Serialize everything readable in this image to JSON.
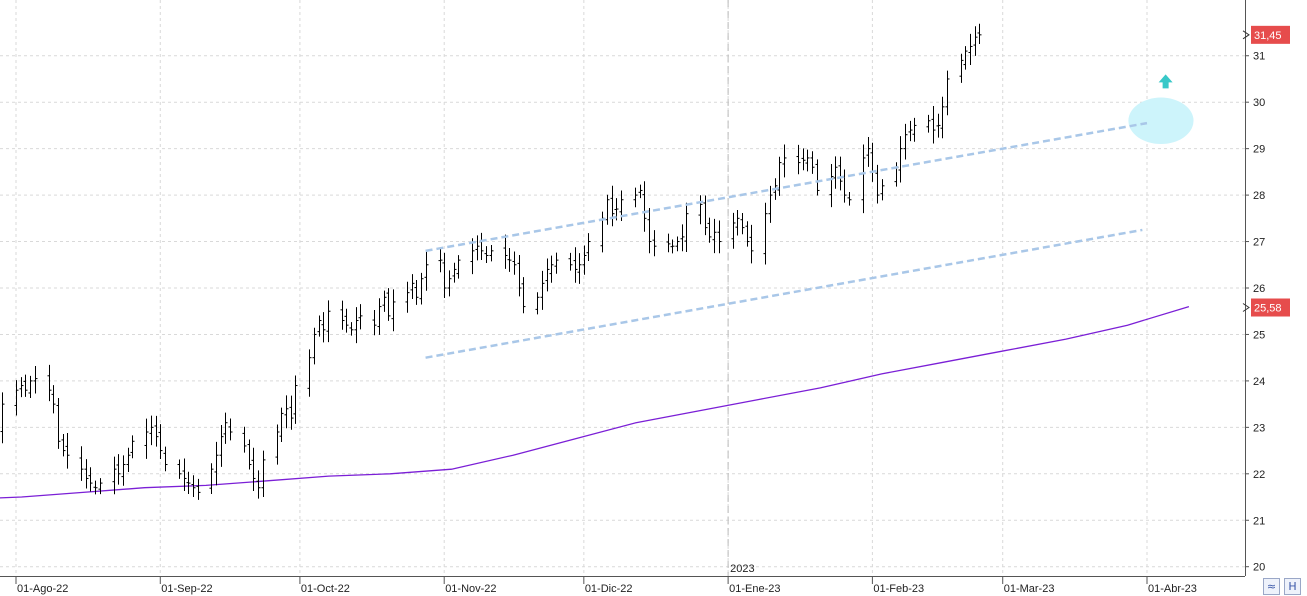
{
  "chart_data": {
    "type": "line",
    "subtype": "ohlc-bars",
    "title": "",
    "xlabel": "",
    "ylabel": "",
    "ylim": [
      19.8,
      32.2
    ],
    "grid": true,
    "y_ticks": [
      20,
      21,
      22,
      23,
      24,
      25,
      26,
      27,
      28,
      29,
      30,
      31
    ],
    "x_ticks": [
      {
        "date": "2022-08-01",
        "label": "01-Ago-22"
      },
      {
        "date": "2022-09-01",
        "label": "01-Sep-22"
      },
      {
        "date": "2022-10-01",
        "label": "01-Oct-22"
      },
      {
        "date": "2022-11-01",
        "label": "01-Nov-22"
      },
      {
        "date": "2022-12-01",
        "label": "01-Dic-22"
      },
      {
        "date": "2023-01-01",
        "label": "01-Ene-23"
      },
      {
        "date": "2023-02-01",
        "label": "01-Feb-23"
      },
      {
        "date": "2023-03-01",
        "label": "01-Mar-23"
      },
      {
        "date": "2023-04-01",
        "label": "01-Abr-23"
      }
    ],
    "year_marker": {
      "date": "2023-01-01",
      "label": "2023"
    },
    "price_close": [
      22.3,
      22.9,
      22.6,
      22.5,
      22.7,
      22.8,
      23.0,
      23.5,
      23.8,
      23.9,
      23.8,
      24.0,
      24.05,
      23.8,
      23.5,
      22.7,
      22.5,
      22.4,
      22.1,
      21.9,
      21.8,
      21.7,
      21.8,
      22.1,
      22.0,
      22.2,
      22.4,
      22.7,
      22.9,
      23.0,
      22.8,
      22.5,
      22.2,
      22.0,
      21.9,
      21.8,
      21.7,
      21.6,
      22.1,
      22.4,
      22.8,
      23.1,
      22.9,
      22.6,
      22.2,
      21.9,
      21.7,
      22.3,
      22.9,
      23.3,
      23.4,
      23.2,
      23.9,
      24.5,
      25.0,
      25.3,
      25.1,
      25.5,
      25.3,
      25.2,
      25.1,
      25.3,
      25.4,
      25.2,
      25.6,
      25.8,
      25.4,
      25.7,
      25.9,
      26.1,
      25.8,
      26.2,
      26.5,
      26.6,
      26.0,
      26.2,
      26.4,
      26.6,
      26.8,
      26.9,
      26.8,
      26.7,
      26.8,
      26.7,
      26.6,
      26.5,
      26.0,
      25.6,
      25.8,
      26.1,
      26.4,
      26.5,
      26.6,
      26.5,
      26.4,
      26.5,
      26.7,
      27.0,
      27.5,
      27.9,
      27.6,
      27.7,
      27.9,
      28.0,
      28.1,
      27.5,
      27.0,
      26.9,
      26.95,
      26.9,
      27.0,
      27.1,
      27.6,
      27.8,
      27.3,
      27.1,
      27.2,
      27.0,
      27.4,
      27.5,
      27.3,
      27.0,
      26.8,
      27.6,
      28.0,
      28.2,
      28.7,
      28.8,
      28.7,
      28.75,
      28.8,
      28.6,
      28.1,
      28.4,
      28.6,
      28.3,
      28.0,
      27.9,
      28.8,
      29.0,
      28.5,
      28.0,
      28.2,
      28.6,
      29.0,
      29.3,
      29.4,
      29.5,
      29.6,
      29.4,
      29.5,
      29.9,
      30.5,
      30.9,
      31.1,
      31.2,
      31.4,
      31.45
    ],
    "series": [
      {
        "name": "",
        "role": "moving-average",
        "color": "#7b1fd6",
        "values": [
          21.45,
          21.5,
          21.6,
          21.7,
          21.75,
          21.85,
          21.95,
          22.0,
          22.1,
          22.4,
          22.75,
          23.1,
          23.35,
          23.6,
          23.85,
          24.15,
          24.4,
          24.65,
          24.9,
          25.2,
          25.6
        ]
      }
    ],
    "annotations": [
      {
        "type": "trendline",
        "role": "channel-upper",
        "style": "dashed",
        "color": "#a9c7e8",
        "from": {
          "date": "2022-10-28",
          "y": 26.8
        },
        "to": {
          "date": "2023-04-01",
          "y": 29.55
        }
      },
      {
        "type": "trendline",
        "role": "channel-lower",
        "style": "dashed",
        "color": "#a9c7e8",
        "from": {
          "date": "2022-10-28",
          "y": 24.5
        },
        "to": {
          "date": "2023-03-31",
          "y": 27.25
        }
      },
      {
        "type": "ellipse",
        "color": "#cdf4fb",
        "center": {
          "date": "2023-04-04",
          "y": 29.6
        },
        "radius_days": 7,
        "radius_y": 0.5
      },
      {
        "type": "arrow-up",
        "color": "#38c8c8",
        "at": {
          "date": "2023-04-05",
          "y": 30.6
        }
      }
    ],
    "price_tags": [
      {
        "label": "31,45",
        "y": 31.45,
        "color": "#e64c4c"
      },
      {
        "label": "25,58",
        "y": 25.58,
        "color": "#e64c4c"
      }
    ]
  },
  "ui": {
    "corner_buttons": [
      {
        "name": "zoom-fit-button",
        "glyph": "≈"
      },
      {
        "name": "save-button",
        "glyph": "H"
      }
    ]
  }
}
